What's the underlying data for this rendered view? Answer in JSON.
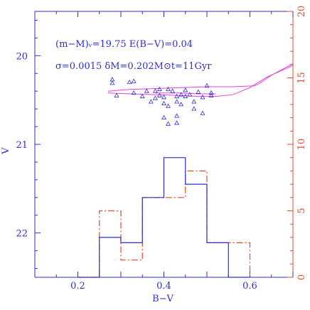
{
  "chart_data": {
    "type": "scatter",
    "xlabel": "B−V",
    "ylabel_left": "V",
    "annotation_line1": "(m−M)ᵥ=19.75  E(B−V)=0.04",
    "annotation_line2": "σ=0.0015  δM=0.202M⊙t=11Gyr",
    "xlim": [
      0.1,
      0.7
    ],
    "ylim_left": [
      22.5,
      19.5
    ],
    "ylim_right": [
      0,
      20
    ],
    "x_ticks": [
      0.2,
      0.4,
      0.6
    ],
    "x_tick_labels": [
      "0.2",
      "0.4",
      "0.6"
    ],
    "y_ticks_left": [
      20,
      21,
      22
    ],
    "y_tick_labels_left": [
      "20",
      "21",
      "22"
    ],
    "y_ticks_right": [
      0,
      5,
      10,
      15,
      20
    ],
    "y_tick_labels_right": [
      "0",
      "5",
      "10",
      "15",
      "20"
    ],
    "colors": {
      "axes_left": "#2e2ed0",
      "axes_right": "#e8472a",
      "points": "#2e2ed0",
      "isochrone": "#e040e0",
      "hist_observed": "#2e2ed0",
      "hist_model": "#e8472a"
    },
    "points": [
      [
        0.28,
        20.27
      ],
      [
        0.28,
        20.31
      ],
      [
        0.29,
        20.45
      ],
      [
        0.32,
        20.3
      ],
      [
        0.33,
        20.29
      ],
      [
        0.33,
        20.42
      ],
      [
        0.35,
        20.46
      ],
      [
        0.36,
        20.4
      ],
      [
        0.37,
        20.52
      ],
      [
        0.38,
        20.4
      ],
      [
        0.38,
        20.48
      ],
      [
        0.39,
        20.38
      ],
      [
        0.39,
        20.45
      ],
      [
        0.4,
        20.47
      ],
      [
        0.4,
        20.54
      ],
      [
        0.41,
        20.38
      ],
      [
        0.41,
        20.57
      ],
      [
        0.42,
        20.4
      ],
      [
        0.43,
        20.46
      ],
      [
        0.43,
        20.52
      ],
      [
        0.44,
        20.44
      ],
      [
        0.44,
        20.55
      ],
      [
        0.45,
        20.39
      ],
      [
        0.45,
        20.46
      ],
      [
        0.46,
        20.44
      ],
      [
        0.47,
        20.52
      ],
      [
        0.47,
        20.6
      ],
      [
        0.48,
        20.41
      ],
      [
        0.49,
        20.47
      ],
      [
        0.49,
        20.65
      ],
      [
        0.5,
        20.34
      ],
      [
        0.51,
        20.45
      ],
      [
        0.4,
        20.7
      ],
      [
        0.41,
        20.77
      ],
      [
        0.43,
        20.68
      ],
      [
        0.43,
        20.76
      ],
      [
        0.51,
        20.42
      ]
    ],
    "isochrone_lower": [
      [
        0.27,
        20.42
      ],
      [
        0.32,
        20.43
      ],
      [
        0.38,
        20.44
      ],
      [
        0.44,
        20.45
      ],
      [
        0.48,
        20.46
      ],
      [
        0.52,
        20.46
      ],
      [
        0.56,
        20.44
      ],
      [
        0.6,
        20.36
      ],
      [
        0.61,
        20.33
      ],
      [
        0.64,
        20.24
      ],
      [
        0.7,
        20.11
      ]
    ],
    "isochrone_upper": [
      [
        0.27,
        20.4
      ],
      [
        0.32,
        20.38
      ],
      [
        0.38,
        20.37
      ],
      [
        0.44,
        20.36
      ],
      [
        0.5,
        20.35
      ],
      [
        0.56,
        20.35
      ],
      [
        0.61,
        20.34
      ],
      [
        0.62,
        20.32
      ],
      [
        0.65,
        20.22
      ],
      [
        0.7,
        20.09
      ]
    ],
    "isochrone_rgb": [
      [
        0.38,
        20.42
      ],
      [
        0.44,
        20.42
      ],
      [
        0.48,
        20.43
      ],
      [
        0.52,
        20.43
      ]
    ],
    "hist_edges": [
      0.2,
      0.25,
      0.3,
      0.35,
      0.4,
      0.45,
      0.5,
      0.55,
      0.6
    ],
    "hist_observed": [
      0,
      3,
      2.6,
      6,
      9,
      7,
      2.6,
      0
    ],
    "hist_model": [
      0,
      5,
      1.3,
      6,
      6,
      8,
      2.6,
      2.6
    ],
    "hist_model_edges": [
      0.2,
      0.25,
      0.3,
      0.35,
      0.4,
      0.45,
      0.5,
      0.55,
      0.6
    ]
  }
}
